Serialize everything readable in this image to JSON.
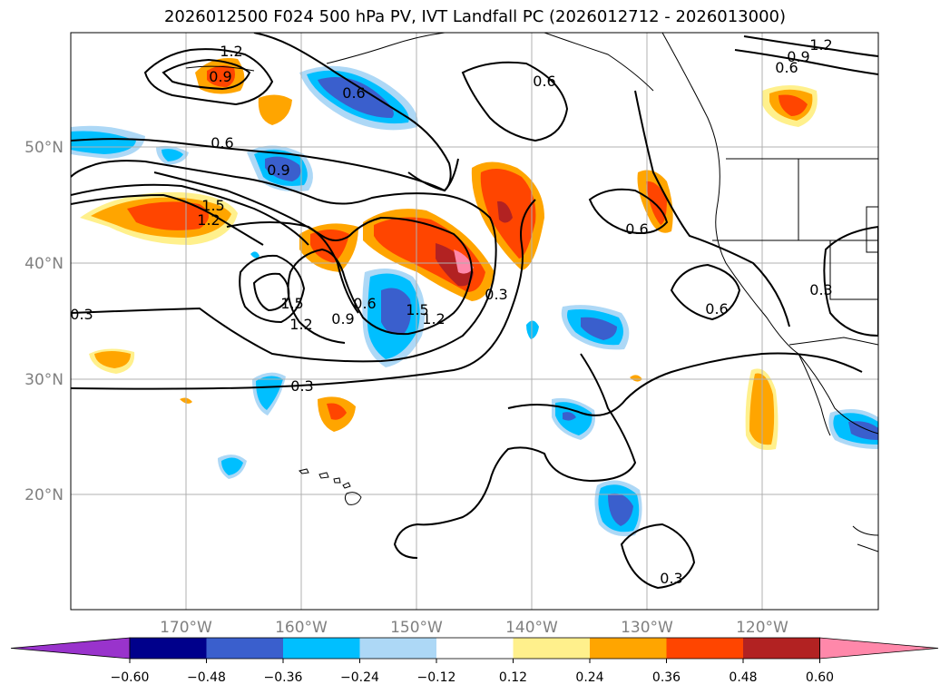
{
  "title": "2026012500 F024 500 hPa PV, IVT Landfall PC (2026012712 - 2026013000)",
  "lat_labels": [
    "50°N",
    "40°N",
    "30°N",
    "20°N"
  ],
  "lon_labels": [
    "170°W",
    "160°W",
    "150°W",
    "140°W",
    "130°W",
    "120°W"
  ],
  "colorbar": {
    "ticks": [
      "−0.60",
      "−0.48",
      "−0.36",
      "−0.24",
      "−0.12",
      "0.12",
      "0.24",
      "0.36",
      "0.48",
      "0.60"
    ],
    "colors": [
      "#9933cc",
      "#00008b",
      "#3a5fcd",
      "#00bfff",
      "#add8f6",
      "#ffffff",
      "#fff08c",
      "#ffa500",
      "#ff4500",
      "#b22222",
      "#ff88aa"
    ]
  },
  "contour_labels": [
    "1.2",
    "0.9",
    "0.6",
    "0.6",
    "0.6",
    "0.9",
    "1.2",
    "0.9",
    "0.6",
    "1.5",
    "1.2",
    "1.5",
    "1.2",
    "0.9",
    "0.6",
    "1.5",
    "1.2",
    "0.3",
    "0.3",
    "0.3",
    "0.6",
    "0.6",
    "0.3",
    "0.3"
  ],
  "colors": {
    "title": "#000000",
    "axis_label": "#808080",
    "grid": "#b0b0b0"
  }
}
